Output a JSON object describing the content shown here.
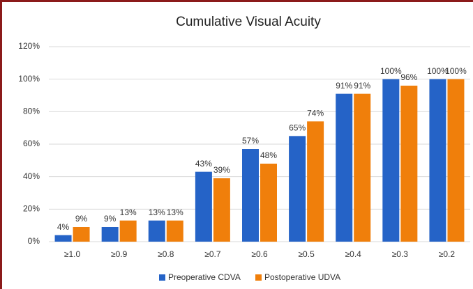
{
  "chart_data": {
    "type": "bar",
    "title": "Cumulative Visual Acuity",
    "categories": [
      "≥1.0",
      "≥0.9",
      "≥0.8",
      "≥0.7",
      "≥0.6",
      "≥0.5",
      "≥0.4",
      "≥0.3",
      "≥0.2"
    ],
    "series": [
      {
        "name": "Preoperative CDVA",
        "color": "#2563c7",
        "values": [
          4,
          9,
          13,
          43,
          57,
          65,
          91,
          100,
          100
        ],
        "value_labels": [
          "4%",
          "9%",
          "13%",
          "43%",
          "57%",
          "65%",
          "91%",
          "100%",
          "100%"
        ]
      },
      {
        "name": "Postoperative UDVA",
        "color": "#f07f0b",
        "values": [
          9,
          13,
          13,
          39,
          48,
          74,
          91,
          96,
          100
        ],
        "value_labels": [
          "9%",
          "13%",
          "13%",
          "39%",
          "48%",
          "74%",
          "91%",
          "96%",
          "100%"
        ]
      }
    ],
    "ylim": [
      0,
      120
    ],
    "yticks": [
      {
        "value": 0,
        "label": "0%"
      },
      {
        "value": 20,
        "label": "20%"
      },
      {
        "value": 40,
        "label": "40%"
      },
      {
        "value": 60,
        "label": "60%"
      },
      {
        "value": 80,
        "label": "80%"
      },
      {
        "value": 100,
        "label": "100%"
      },
      {
        "value": 120,
        "label": "120%"
      }
    ],
    "grid": true,
    "legend": "bottom"
  }
}
